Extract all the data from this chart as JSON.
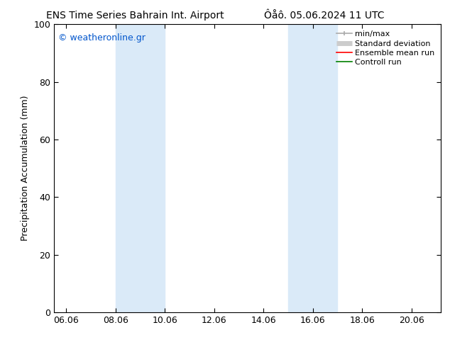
{
  "title_left": "ENS Time Series Bahrain Int. Airport",
  "title_right": "Ôåô. 05.06.2024 11 UTC",
  "xlabel": "",
  "ylabel": "Precipitation Accumulation (mm)",
  "ylim": [
    0,
    100
  ],
  "xlim_start": 5.5,
  "xlim_end": 21.2,
  "xtick_labels": [
    "06.06",
    "08.06",
    "10.06",
    "12.06",
    "14.06",
    "16.06",
    "18.06",
    "20.06"
  ],
  "xtick_positions": [
    6.0,
    8.0,
    10.0,
    12.0,
    14.0,
    16.0,
    18.0,
    20.0
  ],
  "ytick_labels": [
    "0",
    "20",
    "40",
    "60",
    "80",
    "100"
  ],
  "ytick_positions": [
    0,
    20,
    40,
    60,
    80,
    100
  ],
  "shaded_bands": [
    {
      "x_start": 8.0,
      "x_end": 10.0,
      "color": "#daeaf8"
    },
    {
      "x_start": 15.0,
      "x_end": 17.0,
      "color": "#daeaf8"
    }
  ],
  "watermark_text": "© weatheronline.gr",
  "watermark_color": "#0055cc",
  "legend_entries": [
    {
      "label": "min/max",
      "color": "#aaaaaa",
      "lw": 1.2
    },
    {
      "label": "Standard deviation",
      "color": "#cccccc",
      "lw": 5
    },
    {
      "label": "Ensemble mean run",
      "color": "red",
      "lw": 1.2
    },
    {
      "label": "Controll run",
      "color": "green",
      "lw": 1.2
    }
  ],
  "background_color": "#ffffff",
  "plot_bg_color": "#ffffff",
  "border_color": "#000000",
  "title_fontsize": 10,
  "axis_label_fontsize": 9,
  "tick_fontsize": 9,
  "legend_fontsize": 8
}
